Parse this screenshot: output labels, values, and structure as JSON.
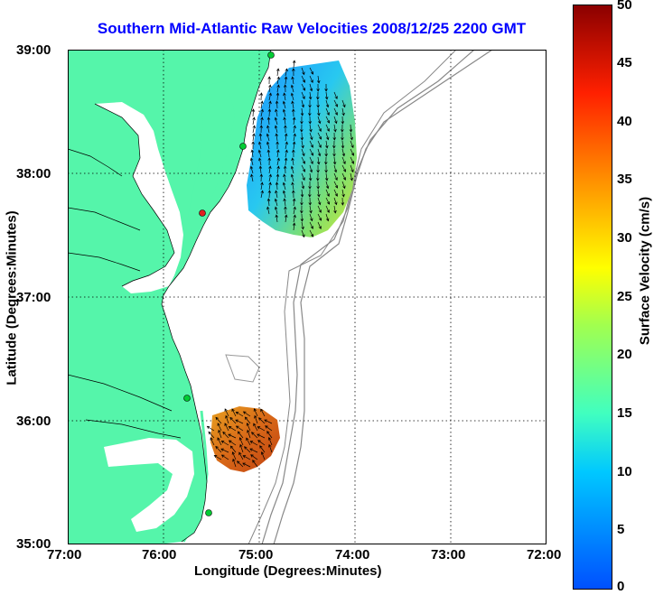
{
  "title": "Southern Mid-Atlantic Raw Velocities 2008/12/25 2200 GMT",
  "xaxis": {
    "label": "Longitude (Degrees:Minutes)",
    "ticks": [
      "77:00",
      "76:00",
      "75:00",
      "74:00",
      "73:00",
      "72:00"
    ]
  },
  "yaxis": {
    "label": "Latitude (Degrees:Minutes)",
    "ticks": [
      "39:00",
      "38:00",
      "37:00",
      "36:00",
      "35:00"
    ]
  },
  "colorbar": {
    "label": "Surface Velocity (cm/s)",
    "ticks": [
      "50",
      "45",
      "40",
      "35",
      "30",
      "25",
      "20",
      "15",
      "10",
      "5",
      "0"
    ],
    "range": [
      0,
      50
    ]
  },
  "colors": {
    "title": "#0000ff",
    "land": "#55f5aa",
    "bathymetry": "#888888",
    "station": "#00cc33",
    "station_alert": "#e02020"
  },
  "map_extent": {
    "lon": [
      -77,
      -72
    ],
    "lat": [
      35,
      39
    ]
  }
}
